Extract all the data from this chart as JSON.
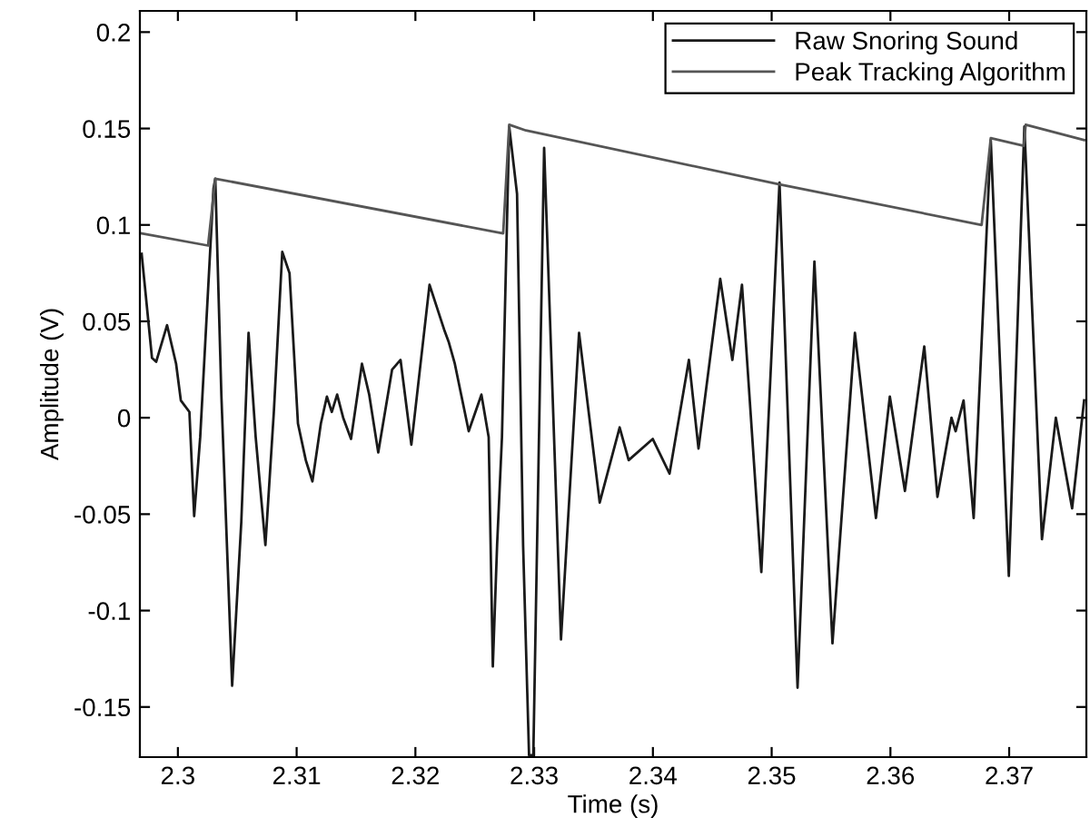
{
  "chart_data": {
    "type": "line",
    "xlabel": "Time (s)",
    "ylabel": "Amplitude (V)",
    "xlim": [
      2.2968,
      2.3765
    ],
    "ylim": [
      -0.176,
      0.211
    ],
    "xticks": [
      2.3,
      2.31,
      2.32,
      2.33,
      2.34,
      2.35,
      2.36,
      2.37
    ],
    "yticks": [
      -0.15,
      -0.1,
      -0.05,
      0,
      0.05,
      0.1,
      0.15,
      0.2
    ],
    "grid": false,
    "legend": "top right",
    "marker": "none",
    "line_style": "solid",
    "series": [
      {
        "name": "Raw Snoring Sound",
        "color": "#1a1a1a",
        "x": [
          2.29695,
          2.29782,
          2.29817,
          2.29909,
          2.29985,
          2.30025,
          2.30097,
          2.30137,
          2.30188,
          2.303,
          2.30315,
          2.30366,
          2.30457,
          2.30534,
          2.30595,
          2.30655,
          2.30737,
          2.30808,
          2.30879,
          2.3094,
          2.31011,
          2.31077,
          2.31133,
          2.31204,
          2.31255,
          2.31296,
          2.31341,
          2.31392,
          2.31458,
          2.3155,
          2.31611,
          2.31687,
          2.31804,
          2.31875,
          2.31966,
          2.32119,
          2.32246,
          2.32282,
          2.32332,
          2.32449,
          2.32556,
          2.32617,
          2.32652,
          2.32688,
          2.32729,
          2.3279,
          2.32856,
          2.32907,
          2.32957,
          2.32993,
          2.33084,
          2.33226,
          2.33378,
          2.33552,
          2.3372,
          2.33796,
          2.33999,
          2.3414,
          2.34303,
          2.34384,
          2.34567,
          2.34669,
          2.3475,
          2.34913,
          2.35066,
          2.35218,
          2.3536,
          2.35512,
          2.35701,
          2.35878,
          2.35995,
          2.36122,
          2.36285,
          2.36396,
          2.36514,
          2.36549,
          2.36616,
          2.36701,
          2.36845,
          2.36997,
          2.37128,
          2.37276,
          2.37393,
          2.3753,
          2.37631
        ],
        "values": [
          0.085,
          0.031,
          0.029,
          0.048,
          0.028,
          0.009,
          0.003,
          -0.051,
          -0.01,
          0.119,
          0.124,
          0.012,
          -0.139,
          -0.054,
          0.044,
          -0.01,
          -0.066,
          0.003,
          0.086,
          0.075,
          -0.003,
          -0.022,
          -0.033,
          -0.003,
          0.011,
          0.003,
          0.012,
          0.0,
          -0.011,
          0.028,
          0.012,
          -0.018,
          0.025,
          0.03,
          -0.014,
          0.069,
          0.045,
          0.039,
          0.028,
          -0.007,
          0.012,
          -0.01,
          -0.129,
          -0.066,
          -0.01,
          0.151,
          0.116,
          -0.066,
          -0.175,
          -0.175,
          0.14,
          -0.115,
          0.044,
          -0.044,
          -0.005,
          -0.022,
          -0.011,
          -0.029,
          0.03,
          -0.016,
          0.072,
          0.03,
          0.069,
          -0.08,
          0.122,
          -0.14,
          0.081,
          -0.117,
          0.044,
          -0.052,
          0.011,
          -0.038,
          0.037,
          -0.041,
          0.0,
          -0.007,
          0.009,
          -0.052,
          0.144,
          -0.082,
          0.151,
          -0.063,
          0.0,
          -0.047,
          0.009
        ]
      },
      {
        "name": "Peak Tracking Algorithm",
        "color": "#555555",
        "x": [
          2.29695,
          2.30254,
          2.30315,
          2.32739,
          2.3279,
          2.32931,
          2.35066,
          2.36768,
          2.36845,
          2.37123,
          2.37139,
          2.37631
        ],
        "values": [
          0.0956,
          0.0893,
          0.124,
          0.0956,
          0.152,
          0.149,
          0.121,
          0.1,
          0.145,
          0.141,
          0.152,
          0.144
        ]
      }
    ]
  }
}
